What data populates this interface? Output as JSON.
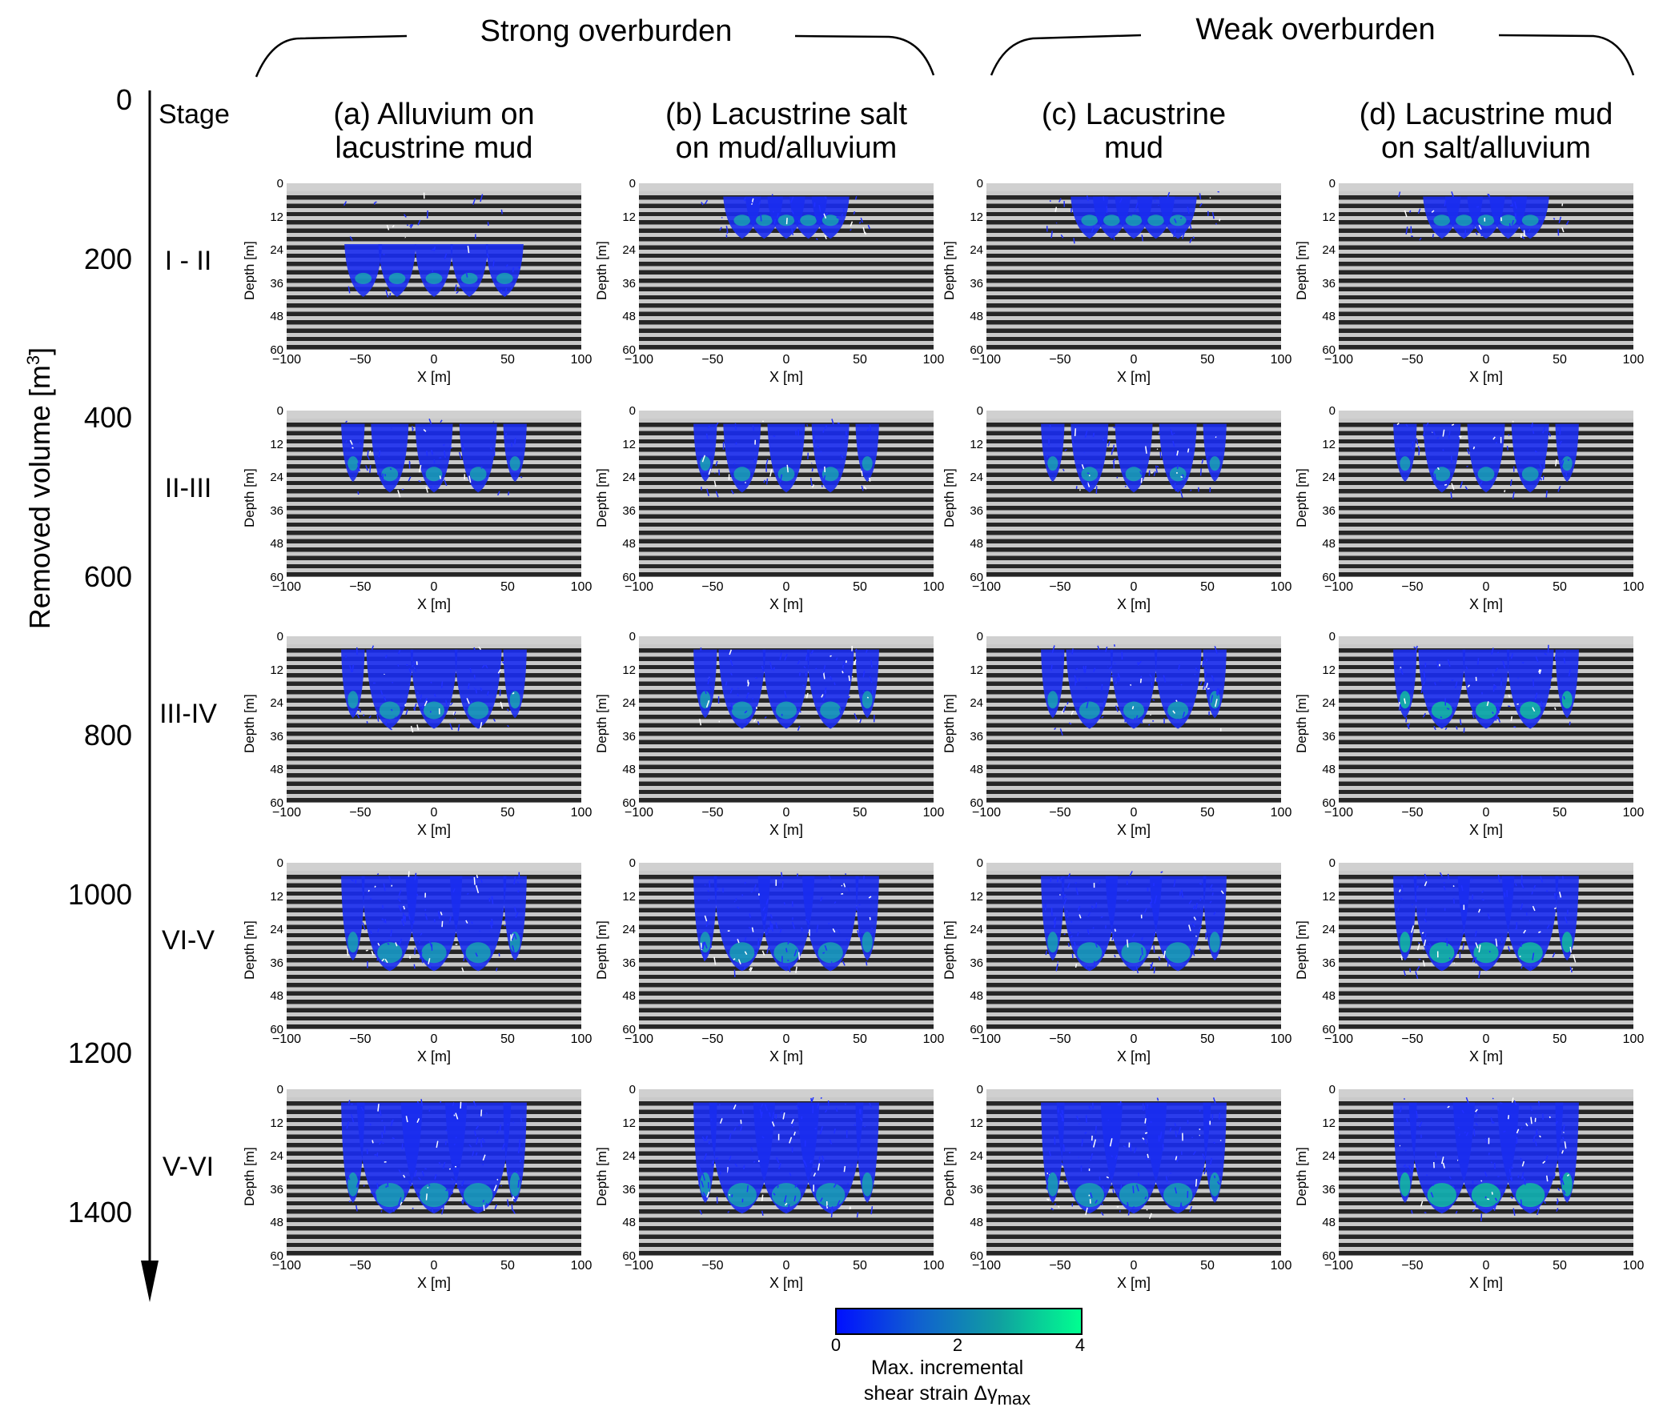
{
  "groups": [
    {
      "title": "Strong overburden"
    },
    {
      "title": "Weak overburden"
    }
  ],
  "axis": {
    "label": "Removed volume [m",
    "label_sup": "3",
    "label_end": "]",
    "ticks": [
      "0",
      "200",
      "400",
      "600",
      "800",
      "1000",
      "1200",
      "1400"
    ]
  },
  "stage_header": "Stage",
  "stages": [
    "I - II",
    "II-III",
    "III-IV",
    "VI-V",
    "V-VI"
  ],
  "columns": [
    {
      "line1": "(a) Alluvium on",
      "line2": "lacustrine mud"
    },
    {
      "line1": "(b) Lacustrine salt",
      "line2": "on mud/alluvium"
    },
    {
      "line1": "(c) Lacustrine",
      "line2": "mud"
    },
    {
      "line1": "(d) Lacustrine mud",
      "line2": "on salt/alluvium"
    }
  ],
  "panel_axes": {
    "ylabel": "Depth [m]",
    "xlabel": "X [m]",
    "yticks": [
      "0",
      "12",
      "24",
      "36",
      "48",
      "60"
    ],
    "xticks": [
      "−100",
      "−50",
      "0",
      "50",
      "100"
    ]
  },
  "colorbar": {
    "ticks": [
      "0",
      "2",
      "4"
    ],
    "label_line1": "Max. incremental",
    "label_line2": "shear strain Δγ",
    "label_sub": "max",
    "color_min": "#0010ff",
    "color_max": "#00ff90"
  }
}
